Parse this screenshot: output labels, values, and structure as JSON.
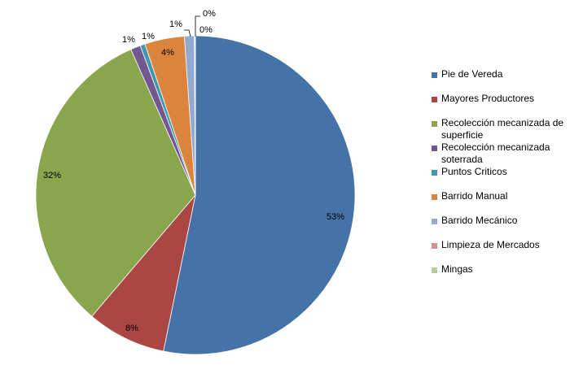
{
  "chart_data": {
    "type": "pie",
    "slices": [
      {
        "name": "Pie de Vereda",
        "value": 53,
        "label": "53%",
        "color": "#4572A7"
      },
      {
        "name": "Mayores Productores",
        "value": 8,
        "label": "8%",
        "color": "#AA4643"
      },
      {
        "name": "Recolección mecanizada de superficie",
        "value": 32,
        "label": "32%",
        "color": "#89A54E"
      },
      {
        "name": "Recolección mecanizada soterrada",
        "value": 1,
        "label": "1%",
        "color": "#71588F"
      },
      {
        "name": "Puntos Criticos",
        "value": 0.5,
        "label": "1%",
        "color": "#4198AF"
      },
      {
        "name": "Barrido Manual",
        "value": 4,
        "label": "4%",
        "color": "#DB843D"
      },
      {
        "name": "Barrido Mecánico",
        "value": 1,
        "label": "1%",
        "color": "#93A9CF"
      },
      {
        "name": "Limpieza de Mercados",
        "value": 0.05,
        "label": "0%",
        "color": "#D19392"
      },
      {
        "name": "Mingas",
        "value": 0.05,
        "label": "0%",
        "color": "#B9CD96"
      }
    ],
    "legend_position": "right"
  }
}
